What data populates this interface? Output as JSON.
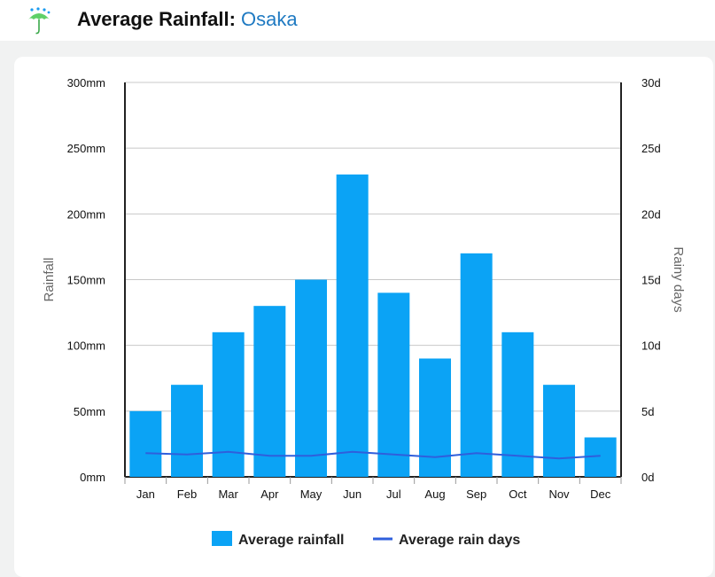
{
  "header": {
    "title_prefix": "Average Rainfall:",
    "city": "Osaka",
    "icon": "umbrella-rain-icon"
  },
  "colors": {
    "bar": "#0ba3f5",
    "line": "#2f5fdc",
    "grid": "#c8c8c8",
    "title_city": "#1f7ac2"
  },
  "chart_data": {
    "type": "bar",
    "categories": [
      "Jan",
      "Feb",
      "Mar",
      "Apr",
      "May",
      "Jun",
      "Jul",
      "Aug",
      "Sep",
      "Oct",
      "Nov",
      "Dec"
    ],
    "series": [
      {
        "name": "Average rainfall",
        "type": "bar",
        "axis": "left",
        "values": [
          50,
          70,
          110,
          130,
          150,
          230,
          140,
          90,
          170,
          110,
          70,
          30
        ]
      },
      {
        "name": "Average rain days",
        "type": "line",
        "axis": "right",
        "values": [
          1.8,
          1.7,
          1.9,
          1.6,
          1.6,
          1.9,
          1.7,
          1.5,
          1.8,
          1.6,
          1.4,
          1.6
        ]
      }
    ],
    "ylabel": "Rainfall",
    "ylabel_right": "Rainy days",
    "ylim": [
      0,
      300
    ],
    "ylim_right": [
      0,
      30
    ],
    "yticks": [
      "0mm",
      "50mm",
      "100mm",
      "150mm",
      "200mm",
      "250mm",
      "300mm"
    ],
    "yticks_right": [
      "0d",
      "5d",
      "10d",
      "15d",
      "20d",
      "25d",
      "30d"
    ],
    "grid": true,
    "legend_position": "bottom"
  }
}
